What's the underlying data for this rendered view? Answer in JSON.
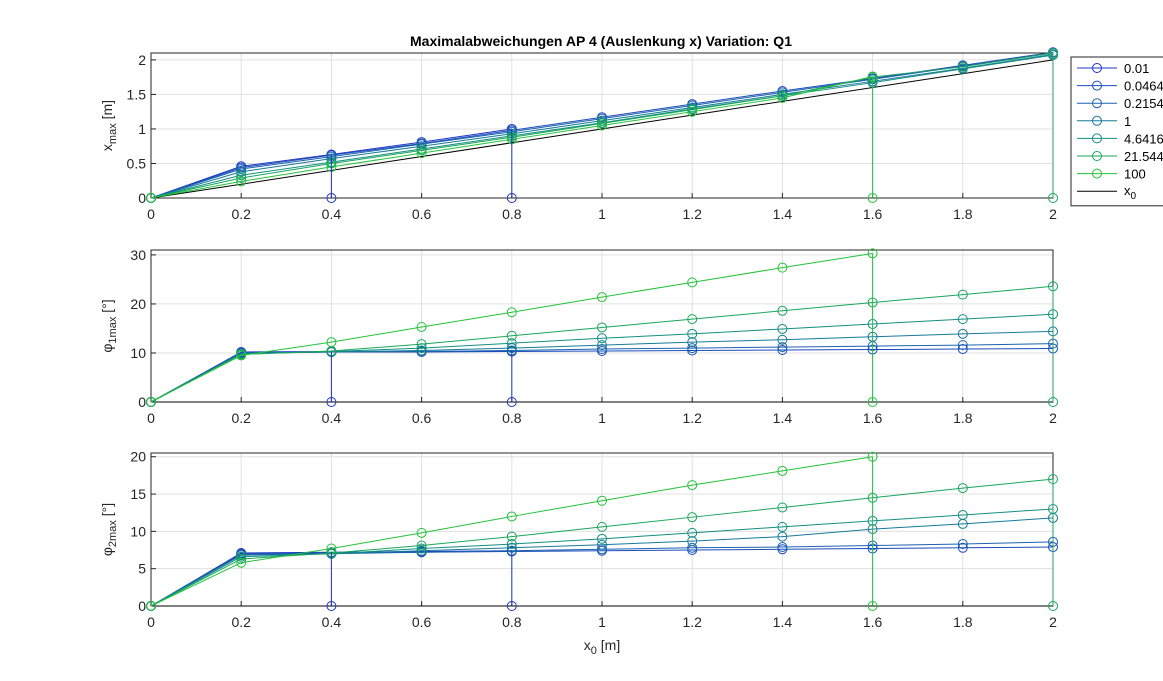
{
  "chart_data": {
    "type": "line",
    "title": "Maximalabweichungen AP 4 (Auslenkung x)  Variation: Q1",
    "x": [
      0,
      0.2,
      0.4,
      0.6,
      0.8,
      1,
      1.2,
      1.4,
      1.6,
      1.8,
      2
    ],
    "x_ticks": [
      "0",
      "0.2",
      "0.4",
      "0.6",
      "0.8",
      "1",
      "1.2",
      "1.4",
      "1.6",
      "1.8",
      "2"
    ],
    "xlabel": {
      "main": "x",
      "sub": "0",
      "unit": " [m]"
    },
    "legend": {
      "placement": "top-right, outside",
      "entries": [
        "0.01",
        "0.0464",
        "0.2154",
        "1",
        "4.6416",
        "21.5443",
        "100",
        "x0"
      ],
      "x0_label": {
        "main": "x",
        "sub": "0"
      }
    },
    "colors": {
      "series": [
        "#1d35c6",
        "#1a4bbd",
        "#1b62b0",
        "#167a9a",
        "#128f83",
        "#18a65c",
        "#22c33a"
      ],
      "reference": "#000000",
      "grid": "#e0e0e0",
      "axis": "#262626"
    },
    "subplots": [
      {
        "ylabel": {
          "main": "x",
          "sub": "max",
          "unit": " [m]"
        },
        "ylim": [
          0,
          2.1
        ],
        "y_ticks": [
          0,
          0.5,
          1,
          1.5,
          2
        ],
        "grid": true,
        "series": [
          {
            "name": "0.01",
            "values": [
              0,
              0.46,
              0.63,
              0.81,
              1.0,
              null,
              null,
              null,
              null,
              null,
              null
            ]
          },
          {
            "name": "0.0464",
            "values": [
              0,
              0.44,
              0.62,
              0.79,
              0.98,
              1.17,
              1.36,
              1.55,
              1.73,
              1.92,
              2.11
            ]
          },
          {
            "name": "0.2154",
            "values": [
              0,
              0.42,
              0.6,
              0.78,
              0.96,
              1.15,
              1.34,
              1.53,
              1.72,
              1.91,
              2.1
            ]
          },
          {
            "name": "1",
            "values": [
              0,
              0.38,
              0.57,
              0.75,
              0.93,
              1.12,
              1.31,
              1.5,
              1.69,
              1.88,
              2.08
            ]
          },
          {
            "name": "4.6416",
            "values": [
              0,
              0.33,
              0.52,
              0.71,
              0.9,
              1.09,
              1.29,
              1.48,
              1.67,
              1.87,
              2.07
            ]
          },
          {
            "name": "21.5443",
            "values": [
              0,
              0.29,
              0.5,
              0.69,
              0.88,
              1.08,
              1.28,
              1.48,
              1.75,
              1.9,
              2.1
            ]
          },
          {
            "name": "100",
            "values": [
              0,
              0.24,
              0.45,
              0.65,
              0.85,
              1.05,
              1.25,
              1.45,
              1.76,
              null,
              null
            ]
          }
        ],
        "reference_x0": [
          0,
          2
        ]
      },
      {
        "ylabel": {
          "main": "φ",
          "sub": "1max",
          "unit": " [°]"
        },
        "ylim": [
          0,
          31
        ],
        "y_ticks": [
          0,
          10,
          20,
          30
        ],
        "grid": true,
        "series": [
          {
            "name": "0.01",
            "values": [
              0,
              10.2,
              10.3,
              10.3,
              10.3,
              null,
              null,
              null,
              null,
              null,
              null
            ]
          },
          {
            "name": "0.0464",
            "values": [
              0,
              10.1,
              10.2,
              10.2,
              10.3,
              10.4,
              10.5,
              10.6,
              10.7,
              10.8,
              10.9
            ]
          },
          {
            "name": "0.2154",
            "values": [
              0,
              10.0,
              10.2,
              10.3,
              10.5,
              10.8,
              11.0,
              11.2,
              11.4,
              11.6,
              11.9
            ]
          },
          {
            "name": "1",
            "values": [
              0,
              9.9,
              10.2,
              10.5,
              11.0,
              11.6,
              12.2,
              12.7,
              13.3,
              13.9,
              14.4
            ]
          },
          {
            "name": "4.6416",
            "values": [
              0,
              9.8,
              10.3,
              11.0,
              12.0,
              13.0,
              13.9,
              14.9,
              15.9,
              16.9,
              17.9
            ]
          },
          {
            "name": "21.5443",
            "values": [
              0,
              9.7,
              10.4,
              11.8,
              13.5,
              15.2,
              16.9,
              18.6,
              20.3,
              21.9,
              23.6
            ]
          },
          {
            "name": "100",
            "values": [
              0,
              9.5,
              12.2,
              15.3,
              18.3,
              21.4,
              24.4,
              27.4,
              30.3,
              null,
              null
            ]
          }
        ],
        "reference_x0": [
          0,
          0
        ]
      },
      {
        "ylabel": {
          "main": "φ",
          "sub": "2max",
          "unit": " [°]"
        },
        "ylim": [
          0,
          20.5
        ],
        "y_ticks": [
          0,
          5,
          10,
          15,
          20
        ],
        "grid": true,
        "series": [
          {
            "name": "0.01",
            "values": [
              0,
              7.1,
              7.2,
              7.3,
              7.4,
              null,
              null,
              null,
              null,
              null,
              null
            ]
          },
          {
            "name": "0.0464",
            "values": [
              0,
              7.0,
              7.1,
              7.2,
              7.3,
              7.4,
              7.5,
              7.6,
              7.7,
              7.8,
              7.9
            ]
          },
          {
            "name": "0.2154",
            "values": [
              0,
              6.9,
              7.0,
              7.2,
              7.4,
              7.6,
              7.8,
              7.9,
              8.1,
              8.3,
              8.6
            ]
          },
          {
            "name": "1",
            "values": [
              0,
              6.8,
              7.0,
              7.4,
              7.8,
              8.2,
              8.7,
              9.3,
              10.3,
              11.0,
              11.8
            ]
          },
          {
            "name": "4.6416",
            "values": [
              0,
              6.6,
              7.0,
              7.7,
              8.3,
              9.0,
              9.8,
              10.6,
              11.4,
              12.2,
              13.0
            ]
          },
          {
            "name": "21.5443",
            "values": [
              0,
              6.3,
              7.1,
              8.1,
              9.3,
              10.6,
              11.9,
              13.2,
              14.5,
              15.8,
              17.0
            ]
          },
          {
            "name": "100",
            "values": [
              0,
              5.8,
              7.7,
              9.8,
              12.0,
              14.1,
              16.2,
              18.1,
              20.0,
              null,
              null
            ]
          }
        ],
        "reference_x0": [
          0,
          0
        ]
      }
    ],
    "zero_drop_markers": [
      {
        "series": "0.01",
        "x": 0.4
      },
      {
        "series": "0.01",
        "x": 0.8
      },
      {
        "series": "100",
        "x": 1.6
      },
      {
        "series": "21.5443",
        "x": 2
      }
    ]
  }
}
